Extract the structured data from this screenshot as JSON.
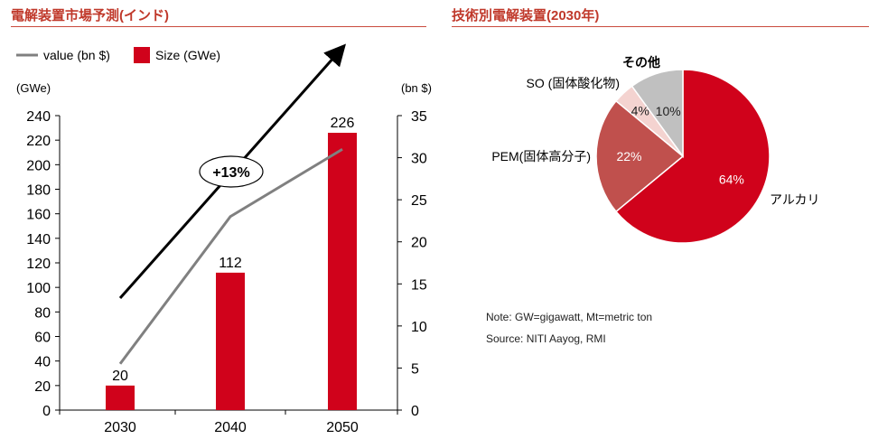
{
  "left_panel": {
    "title": "電解装置市場予測(インド)"
  },
  "right_panel": {
    "title": "技術別電解装置(2030年)"
  },
  "chart_data": [
    {
      "type": "bar",
      "categories": [
        "2030",
        "2040",
        "2050"
      ],
      "series": [
        {
          "name": "Size (GWe)",
          "kind": "bar",
          "axis": "left",
          "color": "#d0021b",
          "values": [
            20,
            112,
            226
          ],
          "labels": [
            "20",
            "112",
            "226"
          ]
        },
        {
          "name": "value (bn $)",
          "kind": "line",
          "axis": "right",
          "color": "#808080",
          "values": [
            5.5,
            23,
            31
          ]
        }
      ],
      "y_left": {
        "unit_label": "(GWe)",
        "range": [
          0,
          240
        ],
        "ticks": [
          "0",
          "20",
          "40",
          "60",
          "80",
          "100",
          "120",
          "140",
          "160",
          "180",
          "200",
          "220",
          "240"
        ]
      },
      "y_right": {
        "unit_label": "(bn $)",
        "range": [
          0,
          35
        ],
        "ticks": [
          "0",
          "5",
          "10",
          "15",
          "20",
          "25",
          "30",
          "35"
        ]
      },
      "grid": false,
      "legend_position": "top-left",
      "annotation": {
        "text": "+13%"
      }
    },
    {
      "type": "pie",
      "slices": [
        {
          "name": "アルカリ",
          "value": 64,
          "label": "64%",
          "color": "#d0021b"
        },
        {
          "name": "PEM(固体高分子)",
          "value": 22,
          "label": "22%",
          "color": "#c0504d"
        },
        {
          "name": "SO (固体酸化物)",
          "value": 4,
          "label": "4%",
          "color": "#f4d3d0"
        },
        {
          "name": "その他",
          "value": 10,
          "label": "10%",
          "color": "#c0c0c0"
        }
      ]
    }
  ],
  "notes": [
    "Note: GW=gigawatt, Mt=metric ton",
    "Source: NITI Aayog, RMI"
  ]
}
